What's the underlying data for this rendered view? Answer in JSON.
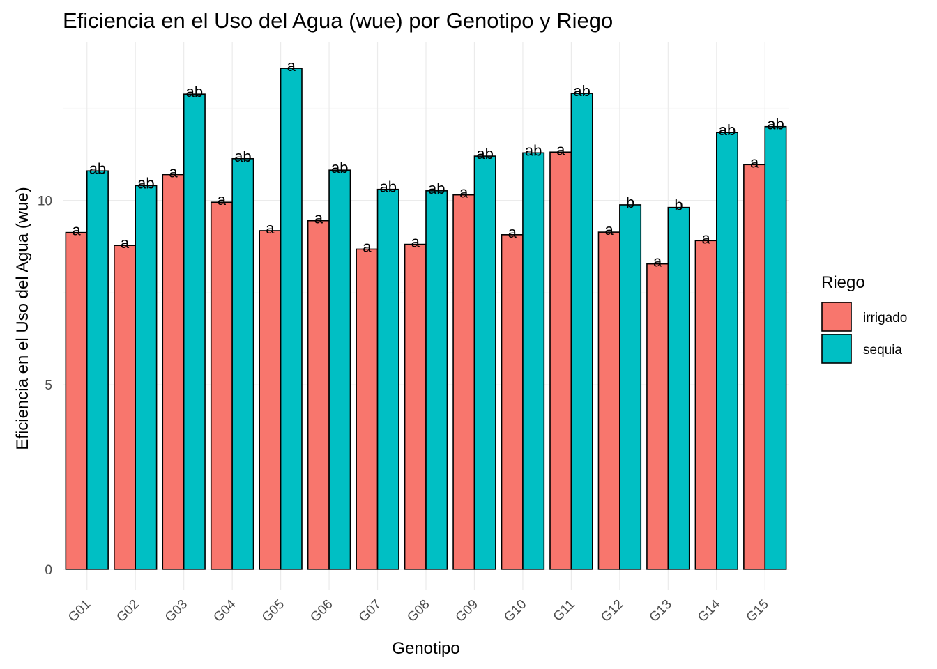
{
  "chart_data": {
    "type": "bar",
    "title": "Eficiencia en el Uso del Agua (wue) por Genotipo y Riego",
    "xlabel": "Genotipo",
    "ylabel": "Eficiencia en el Uso del Agua (wue)",
    "categories": [
      "G01",
      "G02",
      "G03",
      "G04",
      "G05",
      "G06",
      "G07",
      "G08",
      "G09",
      "G10",
      "G11",
      "G12",
      "G13",
      "G14",
      "G15"
    ],
    "ylim": [
      -0.55,
      14.3
    ],
    "yticks": [
      0,
      5,
      10
    ],
    "ytick_labels": [
      "0",
      "5",
      "10"
    ],
    "grid": true,
    "legend": {
      "title": "Riego",
      "position": "right"
    },
    "series": [
      {
        "name": "irrigado",
        "color": "#F8766D",
        "values": [
          9.13,
          8.78,
          10.7,
          9.95,
          9.18,
          9.45,
          8.68,
          8.81,
          10.15,
          9.07,
          11.31,
          9.14,
          8.28,
          8.91,
          10.97
        ],
        "labels": [
          "a",
          "a",
          "a",
          "a",
          "a",
          "a",
          "a",
          "a",
          "a",
          "a",
          "a",
          "a",
          "a",
          "a",
          "a"
        ]
      },
      {
        "name": "sequia",
        "color": "#00BFC4",
        "values": [
          10.8,
          10.4,
          12.88,
          11.13,
          13.58,
          10.82,
          10.3,
          10.26,
          11.2,
          11.29,
          12.9,
          9.88,
          9.81,
          11.84,
          12.0
        ],
        "labels": [
          "ab",
          "ab",
          "ab",
          "ab",
          "a",
          "ab",
          "ab",
          "ab",
          "ab",
          "ab",
          "ab",
          "b",
          "b",
          "ab",
          "ab"
        ]
      }
    ]
  }
}
